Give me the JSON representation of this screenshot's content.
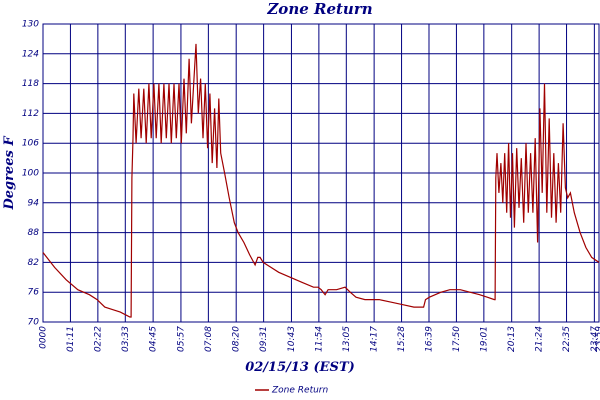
{
  "chart_data": {
    "type": "line",
    "title": "Zone Return",
    "y_label": "Degrees F",
    "x_label": "02/15/13 (EST)",
    "x": [
      0,
      30,
      60,
      90,
      120,
      140,
      160,
      180,
      200,
      225,
      228,
      230,
      233,
      235,
      241,
      248,
      254,
      261,
      267,
      274,
      280,
      287,
      293,
      300,
      306,
      313,
      319,
      326,
      332,
      339,
      345,
      352,
      358,
      365,
      371,
      378,
      384,
      390,
      396,
      402,
      408,
      414,
      420,
      426,
      432,
      438,
      444,
      450,
      455,
      460,
      470,
      482,
      495,
      505,
      520,
      535,
      549,
      556,
      562,
      570,
      590,
      610,
      640,
      670,
      700,
      712,
      720,
      730,
      738,
      760,
      782,
      795,
      810,
      833,
      870,
      900,
      930,
      960,
      985,
      990,
      1000,
      1015,
      1030,
      1053,
      1080,
      1105,
      1130,
      1150,
      1168,
      1170,
      1172,
      1175,
      1180,
      1185,
      1190,
      1195,
      1200,
      1205,
      1210,
      1215,
      1220,
      1226,
      1232,
      1238,
      1244,
      1250,
      1256,
      1262,
      1268,
      1274,
      1280,
      1286,
      1292,
      1298,
      1304,
      1310,
      1316,
      1322,
      1328,
      1334,
      1340,
      1346,
      1352,
      1358,
      1365,
      1375,
      1390,
      1405,
      1420,
      1439
    ],
    "series": [
      {
        "name": "Zone Return",
        "color": "#a00000",
        "values": [
          84,
          81,
          78.5,
          76.5,
          75.5,
          74.5,
          73,
          72.5,
          72,
          71,
          71,
          99,
          107,
          116,
          106,
          117,
          107,
          117,
          106,
          118,
          107,
          118,
          107,
          118,
          106,
          118,
          107,
          118,
          106,
          118,
          107,
          118,
          106,
          119,
          108,
          123,
          110,
          118,
          126,
          112,
          119,
          107,
          118,
          105,
          116,
          102,
          113,
          101,
          115,
          104,
          100,
          95,
          90,
          88,
          86,
          83.5,
          81.5,
          83,
          83,
          82,
          81,
          80,
          79,
          78,
          77,
          77,
          76.5,
          75.5,
          76.5,
          76.5,
          77,
          76,
          75,
          74.5,
          74.5,
          74,
          73.5,
          73,
          73,
          74.5,
          75,
          75.5,
          76,
          76.5,
          76.5,
          76,
          75.5,
          75,
          74.5,
          74.5,
          99,
          104,
          96,
          102,
          94,
          104,
          92,
          106,
          91,
          104,
          89,
          105,
          93,
          103,
          90,
          106,
          92,
          104,
          92,
          107,
          86,
          113,
          96,
          118,
          92,
          111,
          91,
          104,
          90,
          102,
          92,
          110,
          97,
          95,
          96,
          92,
          88,
          85,
          83,
          82
        ]
      }
    ],
    "xlim": [
      0,
      1439
    ],
    "ylim": [
      70,
      130
    ],
    "yticks": [
      70,
      76,
      82,
      88,
      94,
      100,
      106,
      112,
      118,
      124,
      130
    ],
    "xticks": [
      {
        "value": 0,
        "label": "0000"
      },
      {
        "value": 71,
        "label": "01:11"
      },
      {
        "value": 142,
        "label": "02:22"
      },
      {
        "value": 213,
        "label": "03:33"
      },
      {
        "value": 285,
        "label": "04:45"
      },
      {
        "value": 357,
        "label": "05:57"
      },
      {
        "value": 428,
        "label": "07:08"
      },
      {
        "value": 500,
        "label": "08:20"
      },
      {
        "value": 571,
        "label": "09:31"
      },
      {
        "value": 643,
        "label": "10:43"
      },
      {
        "value": 714,
        "label": "11:54"
      },
      {
        "value": 785,
        "label": "13:05"
      },
      {
        "value": 857,
        "label": "14:17"
      },
      {
        "value": 928,
        "label": "15:28"
      },
      {
        "value": 999,
        "label": "16:39"
      },
      {
        "value": 1070,
        "label": "17:50"
      },
      {
        "value": 1141,
        "label": "19:01"
      },
      {
        "value": 1213,
        "label": "20:13"
      },
      {
        "value": 1284,
        "label": "21:24"
      },
      {
        "value": 1355,
        "label": "22:35"
      },
      {
        "value": 1427,
        "label": "23:47"
      },
      {
        "value": 1439,
        "label": "23:59"
      }
    ],
    "grid": true
  }
}
